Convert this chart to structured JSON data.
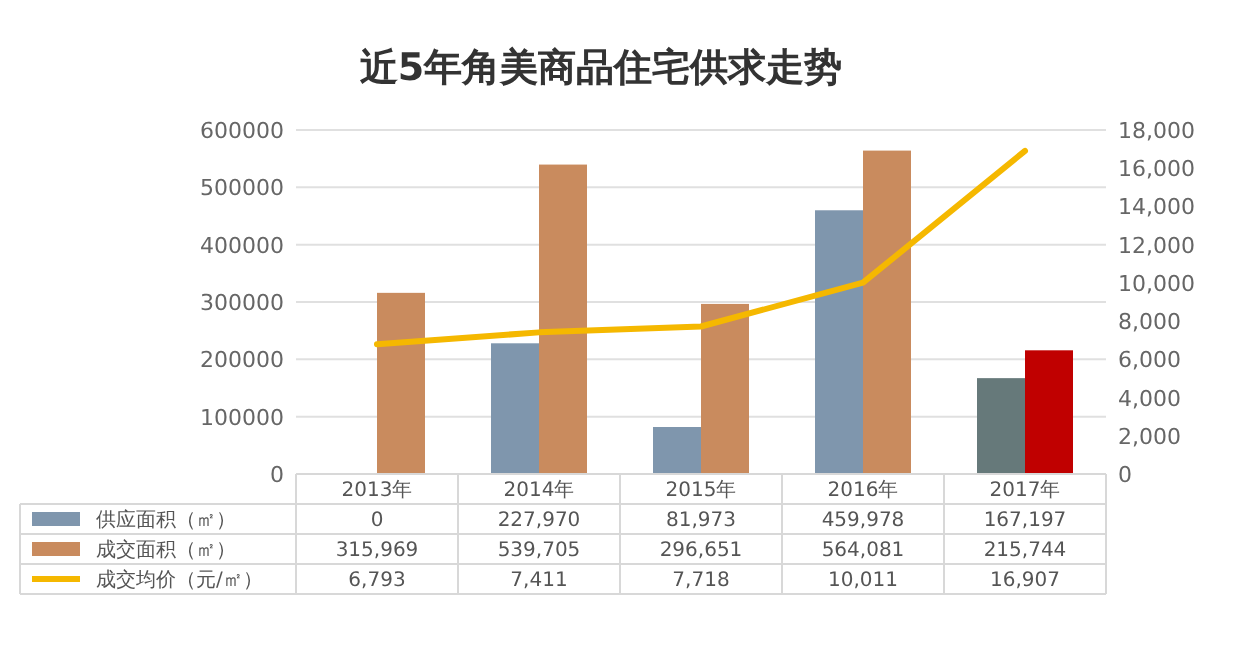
{
  "chart_data": {
    "type": "bar",
    "title": "近5年角美商品住宅供求走势",
    "categories": [
      "2013年",
      "2014年",
      "2015年",
      "2016年",
      "2017年"
    ],
    "series": [
      {
        "name": "供应面积（㎡）",
        "color": "#7f96ad",
        "colors": [
          "#7f96ad",
          "#7f96ad",
          "#7f96ad",
          "#7f96ad",
          "#66797a"
        ],
        "values": [
          0,
          227970,
          81973,
          459978,
          167197
        ],
        "value_labels": [
          "0",
          "227,970",
          "81,973",
          "459,978",
          "167,197"
        ]
      },
      {
        "name": "成交面积（㎡）",
        "color": "#c98b5e",
        "colors": [
          "#c98b5e",
          "#c98b5e",
          "#c98b5e",
          "#c98b5e",
          "#c00000"
        ],
        "values": [
          315969,
          539705,
          296651,
          564081,
          215744
        ],
        "value_labels": [
          "315,969",
          "539,705",
          "296,651",
          "564,081",
          "215,744"
        ]
      },
      {
        "name": "成交均价（元/㎡）",
        "type": "line",
        "axis": "y2",
        "color": "#f5b800",
        "values": [
          6793,
          7411,
          7718,
          10011,
          16907
        ],
        "value_labels": [
          "6,793",
          "7,411",
          "7,718",
          "10,011",
          "16,907"
        ]
      }
    ],
    "ylim": [
      0,
      600000
    ],
    "yticks": [
      0,
      100000,
      200000,
      300000,
      400000,
      500000,
      600000
    ],
    "y2lim": [
      0,
      18000
    ],
    "y2ticks": [
      0,
      {
        "value": 2000,
        "label": "2,000"
      },
      {
        "value": 4000,
        "label": "4,000"
      },
      {
        "value": 6000,
        "label": "6,000"
      },
      {
        "value": 8000,
        "label": "8,000"
      },
      {
        "value": 10000,
        "label": "10,000"
      },
      {
        "value": 12000,
        "label": "12,000"
      },
      {
        "value": 14000,
        "label": "14,000"
      },
      {
        "value": 16000,
        "label": "16,000"
      },
      {
        "value": 18000,
        "label": "18,000"
      }
    ],
    "grid": "y",
    "legend": "bottom",
    "marker": "none"
  }
}
